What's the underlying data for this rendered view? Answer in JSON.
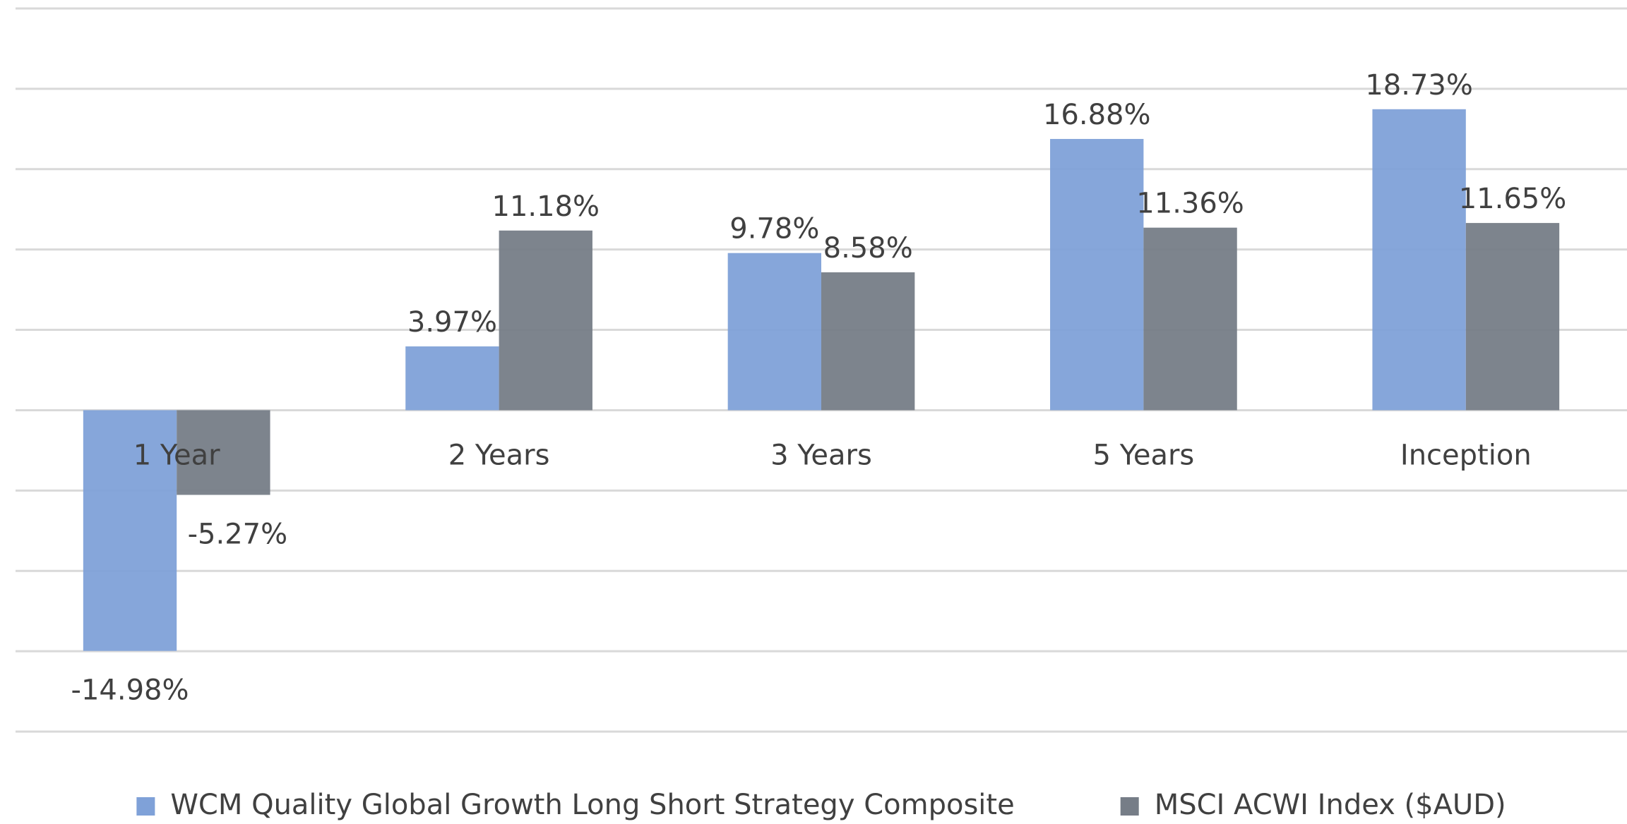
{
  "chart_data": {
    "type": "bar",
    "categories": [
      "1 Year",
      "2 Years",
      "3 Years",
      "5 Years",
      "Inception"
    ],
    "series": [
      {
        "name": "WCM Quality Global Growth Long Short Strategy Composite",
        "color": "#7fa1d8",
        "values": [
          -14.98,
          3.97,
          9.78,
          16.88,
          18.73
        ],
        "value_labels": [
          "-14.98%",
          "3.97%",
          "9.78%",
          "16.88%",
          "18.73%"
        ]
      },
      {
        "name": "MSCI ACWI Index ($AUD)",
        "color": "#767d87",
        "values": [
          -5.27,
          11.18,
          8.58,
          11.36,
          11.65
        ],
        "value_labels": [
          "-5.27%",
          "11.18%",
          "8.58%",
          "11.36%",
          "11.65%"
        ]
      }
    ],
    "ylim": [
      -20,
      25
    ],
    "yticks": [
      -20,
      -15,
      -10,
      -5,
      0,
      5,
      10,
      15,
      20,
      25
    ],
    "grid": true,
    "legend": "bottom"
  }
}
